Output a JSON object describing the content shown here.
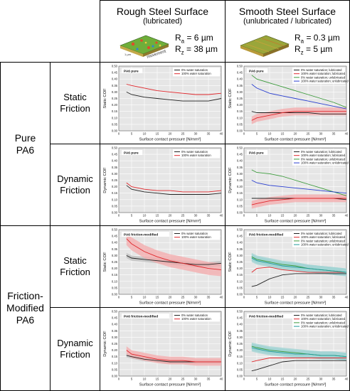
{
  "header": {
    "rough": {
      "title": "Rough Steel Surface",
      "subtitle": "(lubricated)",
      "ra": "= 6 µm",
      "rz": "= 38 µm"
    },
    "smooth": {
      "title": "Smooth Steel Surface",
      "subtitle": "(unlubricated / lubricated)",
      "ra": "= 0.3 µm",
      "rz": "= 5 µm"
    },
    "r_letter": "R",
    "ra_sub": "a",
    "rz_sub": "z",
    "swatch_scale": "1 µm",
    "swatch_movement": "movement"
  },
  "rows": {
    "pure": "Pure PA6",
    "modified_1": "Friction-",
    "modified_2": "Modified",
    "modified_3": "PA6",
    "static_1": "Static",
    "static_2": "Friction",
    "dynamic_1": "Dynamic",
    "dynamic_2": "Friction"
  },
  "colors": {
    "black": "#222222",
    "red": "#e0262b",
    "green": "#3a9a3a",
    "blue": "#2a3fd0",
    "teal": "#1d9a9a",
    "band_red": "#f4a9ab",
    "band_grey": "#bdbdbd",
    "band_teal": "#9fd3d3",
    "plot_bg": "#e6e6e6"
  },
  "chart_data": [
    {
      "id": "rough-static-pure",
      "type": "line",
      "title": "PA6 pure",
      "xlabel": "Surface contact pressure [N/mm²]",
      "ylabel": "Static COF",
      "xlim": [
        0,
        40
      ],
      "ylim": [
        0,
        0.5
      ],
      "xticks": [
        "0",
        "5",
        "10",
        "15",
        "20",
        "25",
        "30",
        "35",
        "40"
      ],
      "yticks": [
        "0.00",
        "0.05",
        "0.10",
        "0.15",
        "0.20",
        "0.25",
        "0.30",
        "0.35",
        "0.40",
        "0.45",
        "0.50"
      ],
      "legend": [
        "0% water saturation",
        "100% water saturation"
      ],
      "series": [
        {
          "name": "0% water saturation",
          "color": "black",
          "x": [
            3,
            5,
            10,
            15,
            20,
            25,
            30,
            35,
            40
          ],
          "y": [
            0.3,
            0.28,
            0.26,
            0.25,
            0.24,
            0.23,
            0.23,
            0.23,
            0.25
          ]
        },
        {
          "name": "100% water saturation",
          "color": "red",
          "x": [
            3,
            5,
            10,
            15,
            20,
            25,
            30,
            35,
            40
          ],
          "y": [
            0.36,
            0.35,
            0.33,
            0.31,
            0.3,
            0.29,
            0.28,
            0.28,
            0.29
          ]
        }
      ]
    },
    {
      "id": "smooth-static-pure",
      "type": "line",
      "title": "PA6 pure",
      "xlabel": "Surface contact pressure [N/mm²]",
      "ylabel": "Static COF",
      "xlim": [
        0,
        40
      ],
      "ylim": [
        0,
        0.5
      ],
      "xticks": [
        "0",
        "5",
        "10",
        "15",
        "20",
        "25",
        "30",
        "35",
        "40"
      ],
      "yticks": [
        "0.00",
        "0.05",
        "0.10",
        "0.15",
        "0.20",
        "0.25",
        "0.30",
        "0.35",
        "0.40",
        "0.45",
        "0.50"
      ],
      "legend": [
        "0% water saturation; lubricated",
        "100% water saturation; lubricated",
        "0% water saturation; unlubricated",
        "100% water saturation; unlubricated"
      ],
      "series": [
        {
          "name": "0% water saturation; lubricated",
          "color": "black",
          "x": [
            3,
            5,
            10,
            15,
            20,
            25,
            30,
            35,
            40
          ],
          "y": [
            0.15,
            0.14,
            0.14,
            0.14,
            0.14,
            0.14,
            0.13,
            0.13,
            0.13
          ]
        },
        {
          "name": "100% water saturation; lubricated",
          "color": "red",
          "band": 0.03,
          "x": [
            3,
            5,
            10,
            15,
            20,
            25,
            30,
            35,
            40
          ],
          "y": [
            0.08,
            0.1,
            0.12,
            0.14,
            0.15,
            0.15,
            0.15,
            0.15,
            0.15
          ]
        },
        {
          "name": "0% water saturation; unlubricated",
          "color": "green",
          "x": [
            3,
            5,
            10,
            15,
            20,
            25,
            30,
            35,
            40
          ],
          "y": [
            0.43,
            0.4,
            0.37,
            0.34,
            0.31,
            0.28,
            0.25,
            0.22,
            0.18
          ]
        },
        {
          "name": "100% water saturation; unlubricated",
          "color": "blue",
          "x": [
            3,
            5,
            10,
            15,
            20,
            25,
            30,
            35,
            40
          ],
          "y": [
            0.36,
            0.33,
            0.29,
            0.27,
            0.25,
            0.23,
            0.21,
            0.19,
            0.17
          ]
        }
      ]
    },
    {
      "id": "rough-dynamic-pure",
      "type": "line",
      "title": "PA6 pure",
      "xlabel": "Surface contact pressure [N/mm²]",
      "ylabel": "Dynamic COF",
      "xlim": [
        0,
        40
      ],
      "ylim": [
        0,
        0.5
      ],
      "xticks": [
        "0",
        "5",
        "10",
        "15",
        "20",
        "25",
        "30",
        "35",
        "40"
      ],
      "yticks": [
        "0.00",
        "0.05",
        "0.10",
        "0.15",
        "0.20",
        "0.25",
        "0.30",
        "0.35",
        "0.40",
        "0.45",
        "0.50"
      ],
      "legend": [
        "0% water saturation",
        "100% water saturation"
      ],
      "series": [
        {
          "name": "0% water saturation",
          "color": "black",
          "x": [
            3,
            5,
            10,
            15,
            20,
            25,
            30,
            35,
            40
          ],
          "y": [
            0.21,
            0.18,
            0.16,
            0.15,
            0.14,
            0.14,
            0.14,
            0.14,
            0.15
          ]
        },
        {
          "name": "100% water saturation",
          "color": "red",
          "x": [
            3,
            5,
            10,
            15,
            20,
            25,
            30,
            35,
            40
          ],
          "y": [
            0.23,
            0.2,
            0.18,
            0.17,
            0.17,
            0.16,
            0.16,
            0.16,
            0.17
          ]
        }
      ]
    },
    {
      "id": "smooth-dynamic-pure",
      "type": "line",
      "title": "PA6 pure",
      "xlabel": "Surface contact pressure [N/mm²]",
      "ylabel": "Dynamic COF",
      "xlim": [
        0,
        40
      ],
      "ylim": [
        0,
        0.5
      ],
      "xticks": [
        "0",
        "5",
        "10",
        "15",
        "20",
        "25",
        "30",
        "35",
        "40"
      ],
      "yticks": [
        "0.00",
        "0.05",
        "0.10",
        "0.15",
        "0.20",
        "0.25",
        "0.30",
        "0.35",
        "0.40",
        "0.45",
        "0.50"
      ],
      "legend": [
        "0% water saturation; lubricated",
        "100% water saturation; lubricated",
        "0% water saturation; unlubricated",
        "100% water saturation; unlubricated"
      ],
      "series": [
        {
          "name": "0% water saturation; lubricated",
          "color": "black",
          "x": [
            3,
            5,
            10,
            15,
            20,
            25,
            30,
            35,
            40
          ],
          "y": [
            0.11,
            0.11,
            0.11,
            0.11,
            0.11,
            0.11,
            0.11,
            0.11,
            0.1
          ]
        },
        {
          "name": "100% water saturation; lubricated",
          "color": "red",
          "band": 0.03,
          "x": [
            3,
            5,
            10,
            15,
            20,
            25,
            30,
            35,
            40
          ],
          "y": [
            0.06,
            0.07,
            0.09,
            0.1,
            0.11,
            0.11,
            0.11,
            0.11,
            0.11
          ]
        },
        {
          "name": "0% water saturation; unlubricated",
          "color": "green",
          "x": [
            3,
            5,
            10,
            15,
            20,
            25,
            30,
            35,
            40
          ],
          "y": [
            0.33,
            0.31,
            0.3,
            0.28,
            0.25,
            0.22,
            0.19,
            0.16,
            0.13
          ]
        },
        {
          "name": "100% water saturation; unlubricated",
          "color": "blue",
          "x": [
            3,
            5,
            10,
            15,
            20,
            25,
            30,
            35,
            40
          ],
          "y": [
            0.25,
            0.23,
            0.21,
            0.2,
            0.19,
            0.18,
            0.17,
            0.16,
            0.15
          ]
        }
      ]
    },
    {
      "id": "rough-static-modified",
      "type": "line",
      "title": "PA6 friction-modified",
      "xlabel": "Surface contact pressure [N/mm²]",
      "ylabel": "Static COF",
      "xlim": [
        0,
        40
      ],
      "ylim": [
        0,
        0.5
      ],
      "xticks": [
        "0",
        "5",
        "10",
        "15",
        "20",
        "25",
        "30",
        "35",
        "40"
      ],
      "yticks": [
        "0.00",
        "0.05",
        "0.10",
        "0.15",
        "0.20",
        "0.25",
        "0.30",
        "0.35",
        "0.40",
        "0.45",
        "0.50"
      ],
      "legend": [
        "0% water saturation",
        "100% water saturation"
      ],
      "series": [
        {
          "name": "0% water saturation",
          "color": "black",
          "band": 0.02,
          "x": [
            3,
            5,
            10,
            15,
            20,
            25,
            30,
            35,
            40
          ],
          "y": [
            0.3,
            0.28,
            0.27,
            0.26,
            0.25,
            0.24,
            0.23,
            0.23,
            0.24
          ]
        },
        {
          "name": "100% water saturation",
          "color": "red",
          "band": 0.05,
          "x": [
            3,
            5,
            10,
            15,
            20,
            25,
            30,
            35,
            40
          ],
          "y": [
            0.43,
            0.39,
            0.33,
            0.29,
            0.26,
            0.24,
            0.22,
            0.2,
            0.19
          ]
        }
      ]
    },
    {
      "id": "smooth-static-modified",
      "type": "line",
      "title": "PA6 friction-modified",
      "xlabel": "Surface contact pressure [N/mm²]",
      "ylabel": "Static COF",
      "xlim": [
        0,
        40
      ],
      "ylim": [
        0,
        0.5
      ],
      "xticks": [
        "0",
        "5",
        "10",
        "15",
        "20",
        "25",
        "30",
        "35",
        "40"
      ],
      "yticks": [
        "0.00",
        "0.05",
        "0.10",
        "0.15",
        "0.20",
        "0.25",
        "0.30",
        "0.35",
        "0.40",
        "0.45",
        "0.50"
      ],
      "legend": [
        "0% water saturation; lubricated",
        "100% water saturation; lubricated",
        "0% water saturation; unlubricated",
        "100% water saturation; unlubricated"
      ],
      "series": [
        {
          "name": "0% water saturation; lubricated",
          "color": "black",
          "x": [
            3,
            5,
            10,
            15,
            20,
            25,
            30,
            35,
            40
          ],
          "y": [
            0.06,
            0.07,
            0.12,
            0.15,
            0.16,
            0.16,
            0.16,
            0.16,
            0.16
          ]
        },
        {
          "name": "100% water saturation; lubricated",
          "color": "red",
          "x": [
            3,
            5,
            10,
            15,
            20,
            25,
            30,
            35,
            40
          ],
          "y": [
            0.17,
            0.2,
            0.21,
            0.19,
            0.18,
            0.17,
            0.17,
            0.17,
            0.17
          ]
        },
        {
          "name": "0% water saturation; unlubricated",
          "color": "green",
          "band": 0.03,
          "x": [
            3,
            5,
            10,
            15,
            20,
            25,
            30,
            35,
            40
          ],
          "y": [
            0.29,
            0.27,
            0.25,
            0.23,
            0.22,
            0.2,
            0.19,
            0.18,
            0.17
          ]
        },
        {
          "name": "100% water saturation; unlubricated",
          "color": "teal",
          "band": 0.03,
          "x": [
            3,
            5,
            10,
            15,
            20,
            25,
            30,
            35,
            40
          ],
          "y": [
            0.28,
            0.26,
            0.24,
            0.22,
            0.21,
            0.2,
            0.19,
            0.18,
            0.17
          ]
        }
      ]
    },
    {
      "id": "rough-dynamic-modified",
      "type": "line",
      "title": "PA6 friction-modified",
      "xlabel": "Surface contact pressure [N/mm²]",
      "ylabel": "Dynamic COF",
      "xlim": [
        0,
        40
      ],
      "ylim": [
        0,
        0.5
      ],
      "xticks": [
        "0",
        "5",
        "10",
        "15",
        "20",
        "25",
        "30",
        "35",
        "40"
      ],
      "yticks": [
        "0.00",
        "0.05",
        "0.10",
        "0.15",
        "0.20",
        "0.25",
        "0.30",
        "0.35",
        "0.40",
        "0.45",
        "0.50"
      ],
      "legend": [
        "0% water saturation",
        "100% water saturation"
      ],
      "series": [
        {
          "name": "0% water saturation",
          "color": "black",
          "band": 0.015,
          "x": [
            3,
            5,
            10,
            15,
            20,
            25,
            30,
            35,
            40
          ],
          "y": [
            0.16,
            0.15,
            0.13,
            0.12,
            0.11,
            0.11,
            0.11,
            0.11,
            0.11
          ]
        },
        {
          "name": "100% water saturation",
          "color": "red",
          "band": 0.03,
          "x": [
            3,
            5,
            10,
            15,
            20,
            25,
            30,
            35,
            40
          ],
          "y": [
            0.2,
            0.17,
            0.15,
            0.13,
            0.12,
            0.12,
            0.11,
            0.11,
            0.11
          ]
        }
      ]
    },
    {
      "id": "smooth-dynamic-modified",
      "type": "line",
      "title": "PA6 friction-modified",
      "xlabel": "Surface contact pressure [N/mm²]",
      "ylabel": "Dynamic COF",
      "xlim": [
        0,
        40
      ],
      "ylim": [
        0,
        0.5
      ],
      "xticks": [
        "0",
        "5",
        "10",
        "15",
        "20",
        "25",
        "30",
        "35",
        "40"
      ],
      "yticks": [
        "0.00",
        "0.05",
        "0.10",
        "0.15",
        "0.20",
        "0.25",
        "0.30",
        "0.35",
        "0.40",
        "0.45",
        "0.50"
      ],
      "legend": [
        "0% water saturation; lubricated",
        "100% water saturation; lubricated",
        "0% water saturation; unlubricated",
        "100% water saturation; unlubricated"
      ],
      "series": [
        {
          "name": "0% water saturation; lubricated",
          "color": "black",
          "x": [
            3,
            5,
            10,
            15,
            20,
            25,
            30,
            35,
            40
          ],
          "y": [
            0.04,
            0.05,
            0.08,
            0.11,
            0.12,
            0.12,
            0.12,
            0.12,
            0.12
          ]
        },
        {
          "name": "100% water saturation; lubricated",
          "color": "red",
          "x": [
            3,
            5,
            10,
            15,
            20,
            25,
            30,
            35,
            40
          ],
          "y": [
            0.11,
            0.12,
            0.14,
            0.14,
            0.14,
            0.14,
            0.14,
            0.14,
            0.14
          ]
        },
        {
          "name": "0% water saturation; unlubricated",
          "color": "green",
          "band": 0.03,
          "x": [
            3,
            5,
            10,
            15,
            20,
            25,
            30,
            35,
            40
          ],
          "y": [
            0.23,
            0.22,
            0.2,
            0.19,
            0.18,
            0.17,
            0.16,
            0.16,
            0.15
          ]
        },
        {
          "name": "100% water saturation; unlubricated",
          "color": "teal",
          "band": 0.03,
          "x": [
            3,
            5,
            10,
            15,
            20,
            25,
            30,
            35,
            40
          ],
          "y": [
            0.22,
            0.21,
            0.19,
            0.18,
            0.17,
            0.17,
            0.16,
            0.16,
            0.15
          ]
        }
      ]
    }
  ]
}
